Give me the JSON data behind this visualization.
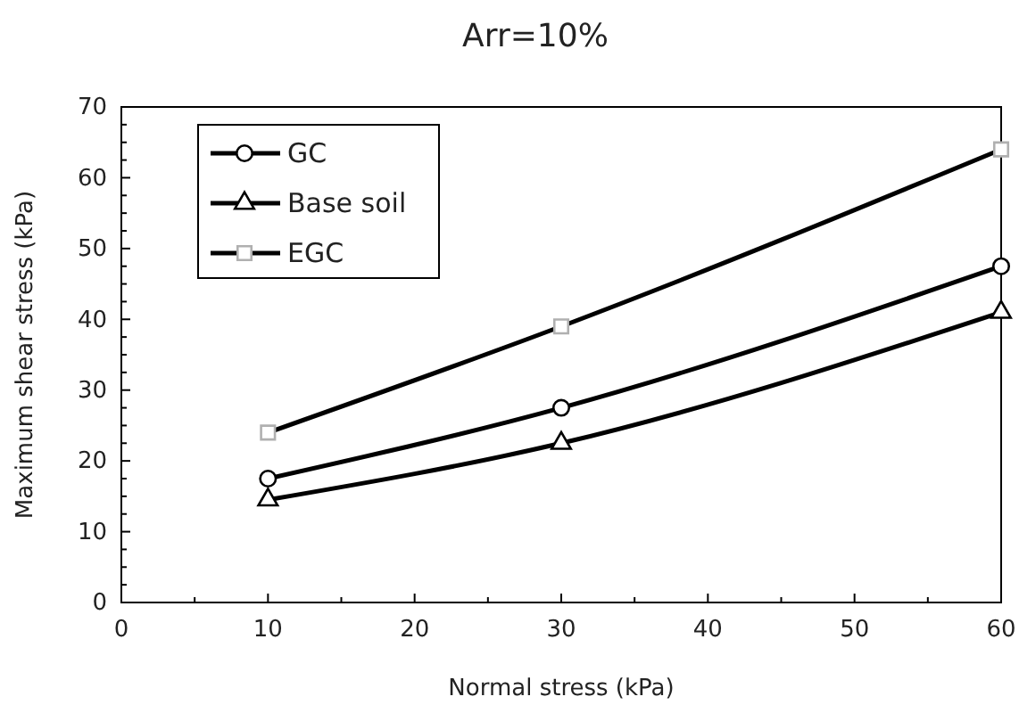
{
  "chart_data": {
    "type": "line",
    "title": "Arr=10%",
    "xlabel": "Normal stress (kPa)",
    "ylabel": "Maximum shear stress (kPa)",
    "x": [
      10,
      30,
      60
    ],
    "series": [
      {
        "name": "GC",
        "color": "#000000",
        "marker": "circle",
        "values": [
          17.5,
          27.5,
          47.5
        ]
      },
      {
        "name": "Base soil",
        "color": "#000000",
        "marker": "triangle",
        "values": [
          14.5,
          22.5,
          41
        ]
      },
      {
        "name": "EGC",
        "color": "#000000",
        "marker": "square",
        "values": [
          24,
          39,
          64
        ]
      }
    ],
    "xlim": [
      0,
      60
    ],
    "ylim": [
      0,
      70
    ],
    "xticks": [
      0,
      {
        "value": 5,
        "label": null
      },
      10,
      {
        "value": 15,
        "label": null
      },
      20,
      {
        "value": 25,
        "label": null
      },
      30,
      {
        "value": 35,
        "label": null
      },
      40,
      {
        "value": 45,
        "label": null
      },
      50,
      {
        "value": 55,
        "label": null
      },
      60
    ],
    "yticks": [
      0,
      {
        "value": 2.5,
        "label": null
      },
      {
        "value": 5,
        "label": null
      },
      {
        "value": 7.5,
        "label": null
      },
      10,
      {
        "value": 12.5,
        "label": null
      },
      {
        "value": 15,
        "label": null
      },
      {
        "value": 17.5,
        "label": null
      },
      20,
      {
        "value": 22.5,
        "label": null
      },
      {
        "value": 25,
        "label": null
      },
      {
        "value": 27.5,
        "label": null
      },
      30,
      {
        "value": 32.5,
        "label": null
      },
      {
        "value": 35,
        "label": null
      },
      {
        "value": 37.5,
        "label": null
      },
      40,
      {
        "value": 42.5,
        "label": null
      },
      {
        "value": 45,
        "label": null
      },
      {
        "value": 47.5,
        "label": null
      },
      50,
      {
        "value": 52.5,
        "label": null
      },
      {
        "value": 55,
        "label": null
      },
      {
        "value": 57.5,
        "label": null
      },
      60,
      {
        "value": 62.5,
        "label": null
      },
      {
        "value": 65,
        "label": null
      },
      {
        "value": 67.5,
        "label": null
      },
      70
    ],
    "grid": false,
    "legend": "top left",
    "line_style": "solid"
  }
}
